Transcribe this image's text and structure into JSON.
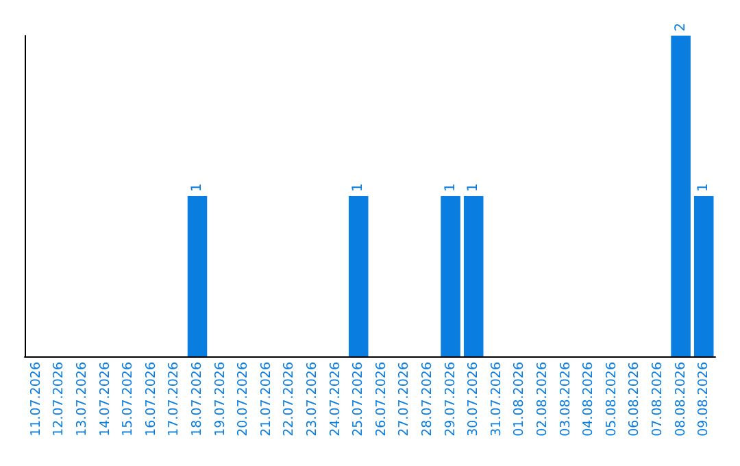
{
  "chart_data": {
    "type": "bar",
    "categories": [
      "11.07.2026",
      "12.07.2026",
      "13.07.2026",
      "14.07.2026",
      "15.07.2026",
      "16.07.2026",
      "17.07.2026",
      "18.07.2026",
      "19.07.2026",
      "20.07.2026",
      "21.07.2026",
      "22.07.2026",
      "23.07.2026",
      "24.07.2026",
      "25.07.2026",
      "26.07.2026",
      "27.07.2026",
      "28.07.2026",
      "29.07.2026",
      "30.07.2026",
      "31.07.2026",
      "01.08.2026",
      "02.08.2026",
      "03.08.2026",
      "04.08.2026",
      "05.08.2026",
      "06.08.2026",
      "07.08.2026",
      "08.08.2026",
      "09.08.2026"
    ],
    "values": [
      0,
      0,
      0,
      0,
      0,
      0,
      0,
      1,
      0,
      0,
      0,
      0,
      0,
      0,
      1,
      0,
      0,
      0,
      1,
      1,
      0,
      0,
      0,
      0,
      0,
      0,
      0,
      0,
      2,
      1
    ],
    "value_labels": [
      null,
      null,
      null,
      null,
      null,
      null,
      null,
      "1",
      null,
      null,
      null,
      null,
      null,
      null,
      "1",
      null,
      null,
      null,
      "1",
      "1",
      null,
      null,
      null,
      null,
      null,
      null,
      null,
      null,
      "2",
      "1"
    ],
    "color": "#0a7ee0",
    "grid": false
  }
}
